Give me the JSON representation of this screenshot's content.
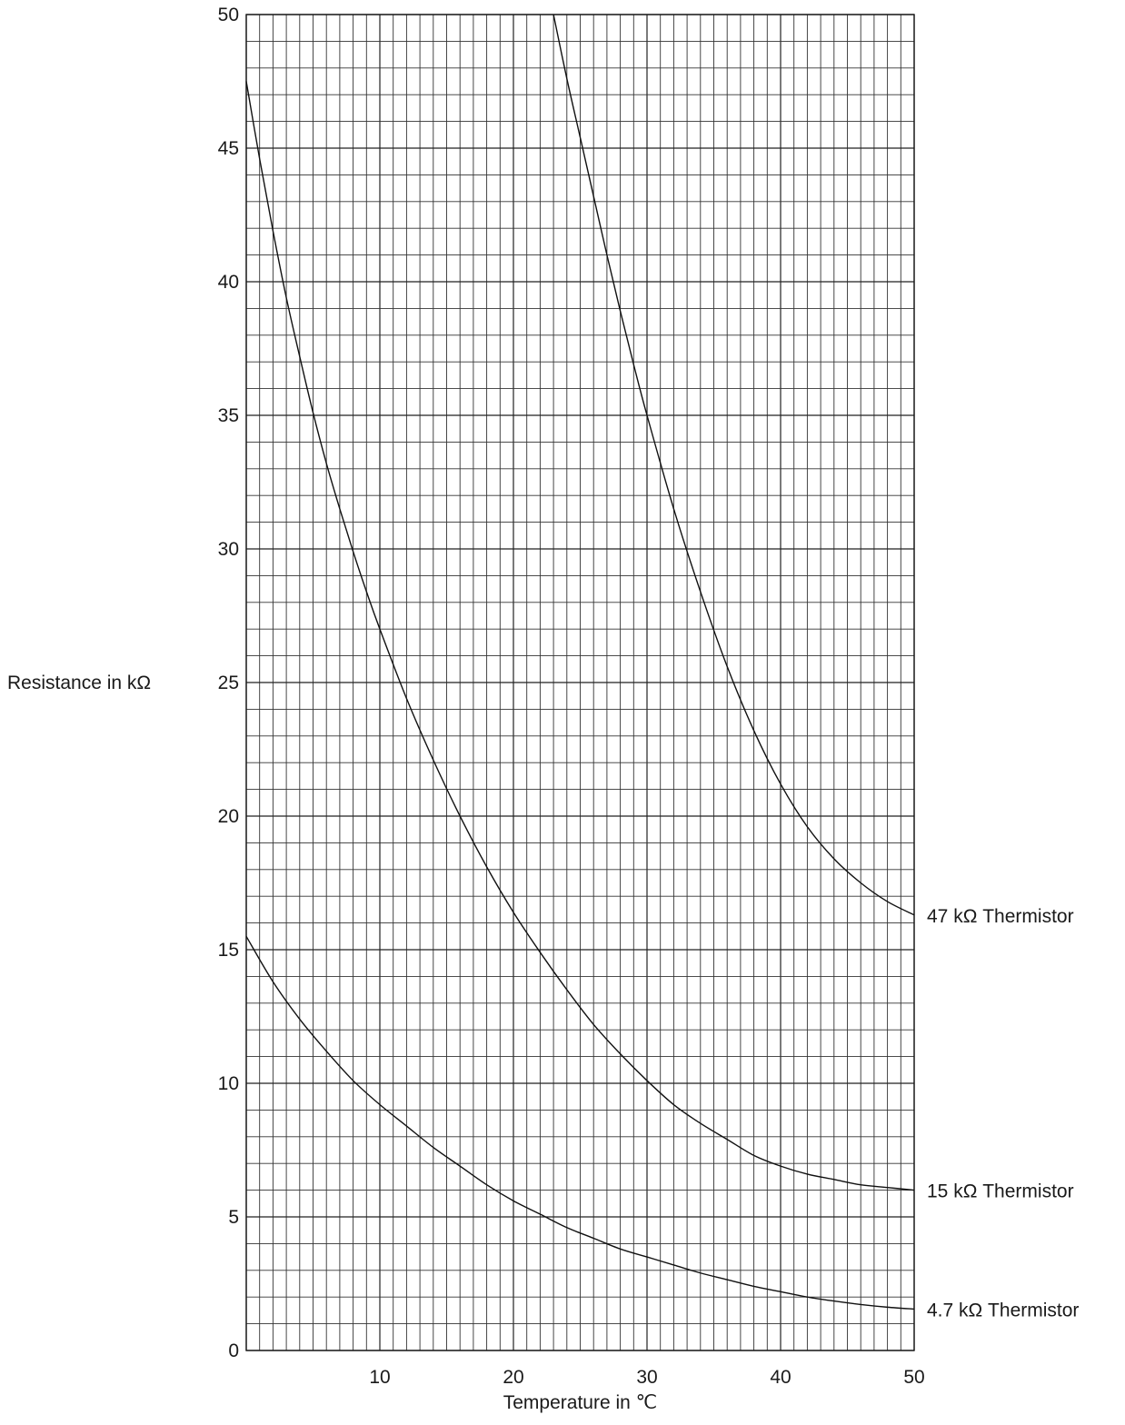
{
  "chart_data": {
    "type": "line",
    "xlabel": "Temperature in ℃",
    "ylabel": "Resistance in kΩ",
    "xlim": [
      0,
      50
    ],
    "ylim": [
      0,
      50
    ],
    "x_ticks": [
      10,
      20,
      30,
      40,
      50
    ],
    "y_ticks": [
      0,
      5,
      10,
      15,
      20,
      25,
      30,
      35,
      40,
      45,
      50
    ],
    "grid": true,
    "grid_minor_step": 1,
    "legend": "labels at right end of each curve",
    "line_color": "#111111",
    "series": [
      {
        "name": "47 kΩ Thermistor",
        "x": [
          23,
          24,
          25,
          26,
          27,
          28,
          29,
          30,
          32,
          34,
          36,
          38,
          40,
          42,
          44,
          46,
          48,
          50
        ],
        "y": [
          50,
          47.6,
          45.4,
          43.2,
          41.0,
          38.9,
          36.9,
          35.0,
          31.5,
          28.4,
          25.6,
          23.2,
          21.2,
          19.6,
          18.4,
          17.5,
          16.8,
          16.3
        ]
      },
      {
        "name": "15 kΩ Thermistor",
        "x": [
          0,
          1,
          2,
          3,
          4,
          5,
          6,
          7,
          8,
          9,
          10,
          12,
          14,
          16,
          18,
          20,
          22,
          24,
          26,
          28,
          30,
          32,
          34,
          36,
          38,
          40,
          42,
          44,
          46,
          48,
          50
        ],
        "y": [
          47.5,
          44.6,
          41.9,
          39.4,
          37.2,
          35.1,
          33.2,
          31.5,
          29.9,
          28.4,
          27.0,
          24.4,
          22.1,
          20.0,
          18.1,
          16.4,
          14.9,
          13.5,
          12.2,
          11.1,
          10.1,
          9.2,
          8.5,
          7.9,
          7.3,
          6.9,
          6.6,
          6.4,
          6.2,
          6.1,
          6.0
        ]
      },
      {
        "name": "4.7 kΩ Thermistor",
        "x": [
          0,
          2,
          4,
          6,
          8,
          10,
          12,
          14,
          16,
          18,
          20,
          22,
          24,
          26,
          28,
          30,
          32,
          34,
          36,
          38,
          40,
          42,
          44,
          46,
          48,
          50
        ],
        "y": [
          15.5,
          13.8,
          12.4,
          11.2,
          10.1,
          9.2,
          8.4,
          7.6,
          6.9,
          6.2,
          5.6,
          5.1,
          4.6,
          4.2,
          3.8,
          3.5,
          3.2,
          2.9,
          2.65,
          2.4,
          2.2,
          2.0,
          1.85,
          1.72,
          1.62,
          1.55
        ]
      }
    ]
  }
}
